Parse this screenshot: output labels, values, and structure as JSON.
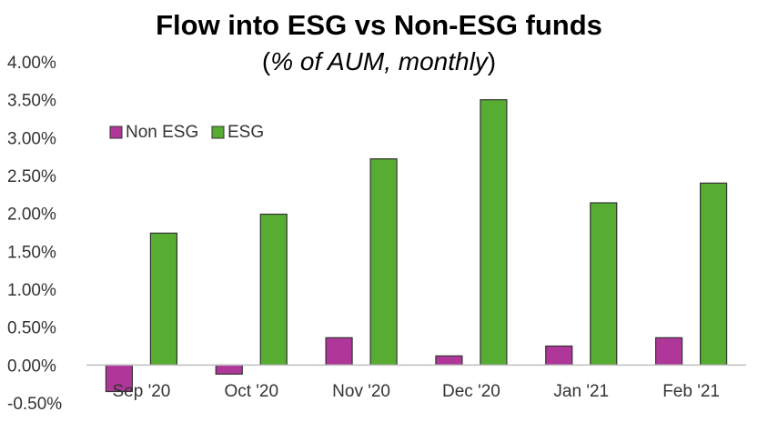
{
  "chart_data": {
    "type": "bar",
    "title": "Flow into ESG vs Non-ESG funds",
    "subtitle_open": "(",
    "subtitle_italic": "% of AUM, monthly",
    "subtitle_close": ")",
    "categories": [
      "Sep '20",
      "Oct '20",
      "Nov '20",
      "Dec '20",
      "Jan '21",
      "Feb '21"
    ],
    "series": [
      {
        "name": "Non ESG",
        "color": "#b0379a",
        "values": [
          -0.35,
          -0.12,
          0.36,
          0.12,
          0.25,
          0.36
        ]
      },
      {
        "name": "ESG",
        "color": "#56ad32",
        "values": [
          1.74,
          1.99,
          2.72,
          3.5,
          2.14,
          2.4
        ]
      }
    ],
    "ylim": [
      -0.5,
      4.0
    ],
    "yticks": [
      "-0.50%",
      "0.00%",
      "0.50%",
      "1.00%",
      "1.50%",
      "2.00%",
      "2.50%",
      "3.00%",
      "3.50%",
      "4.00%"
    ],
    "ytick_values": [
      -0.5,
      0,
      0.5,
      1.0,
      1.5,
      2.0,
      2.5,
      3.0,
      3.5,
      4.0
    ],
    "legend_position": "top-left",
    "grid": false
  }
}
